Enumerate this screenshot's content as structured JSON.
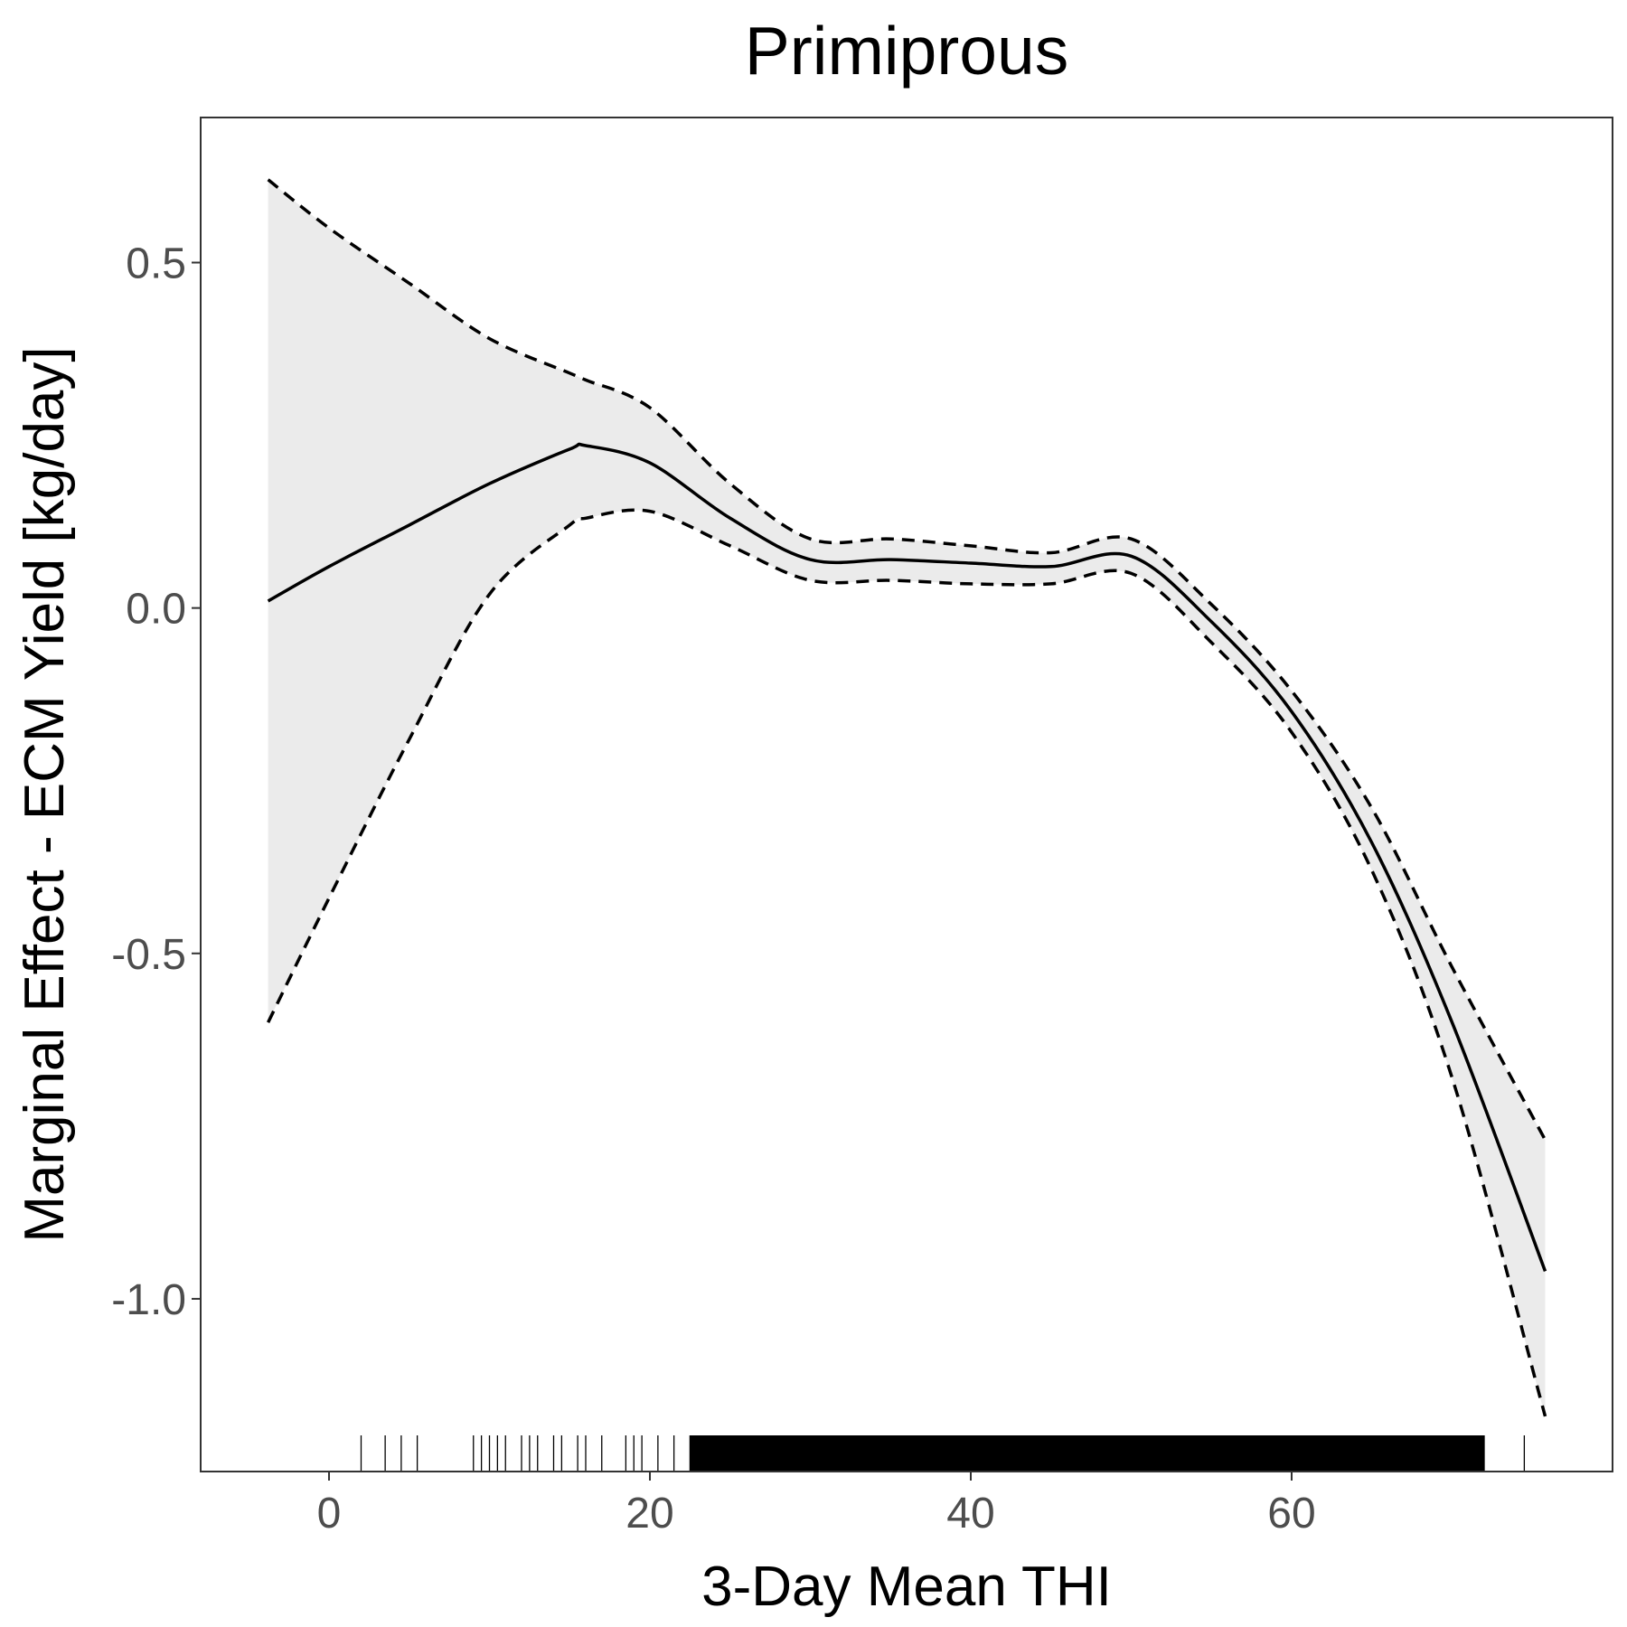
{
  "chart_data": {
    "type": "line",
    "title": "Primiprous",
    "xlabel": "3-Day Mean THI",
    "ylabel": "Marginal Effect - ECM Yield [kg/day]",
    "xlim": [
      -8,
      80
    ],
    "ylim": [
      -1.25,
      0.71
    ],
    "xticks": [
      0,
      20,
      40,
      60
    ],
    "xtick_labels": [
      "0",
      "20",
      "40",
      "60"
    ],
    "yticks": [
      0.5,
      0.0,
      -0.5,
      -1.0
    ],
    "ytick_labels": [
      "0.5",
      "0.0",
      "-0.5",
      "-1.0"
    ],
    "grid": false,
    "ribbon_color": "#ebebeb",
    "line_color": "#000000",
    "x": [
      -3.8,
      0,
      5,
      10,
      15,
      16,
      20,
      25,
      30,
      35,
      40,
      45,
      50,
      55,
      60,
      65,
      70,
      75.8
    ],
    "estimate": [
      0.01,
      0.06,
      0.12,
      0.18,
      0.23,
      0.235,
      0.21,
      0.13,
      0.07,
      0.07,
      0.065,
      0.06,
      0.075,
      -0.02,
      -0.15,
      -0.34,
      -0.6,
      -0.96
    ],
    "lower": [
      -0.6,
      -0.42,
      -0.19,
      0.02,
      0.12,
      0.13,
      0.14,
      0.09,
      0.04,
      0.04,
      0.035,
      0.035,
      0.05,
      -0.05,
      -0.18,
      -0.38,
      -0.68,
      -1.17
    ],
    "upper": [
      0.62,
      0.55,
      0.47,
      0.39,
      0.34,
      0.33,
      0.29,
      0.18,
      0.1,
      0.1,
      0.09,
      0.08,
      0.1,
      0.005,
      -0.12,
      -0.29,
      -0.52,
      -0.77
    ],
    "rug": [
      2,
      3.5,
      4.5,
      5.5,
      9,
      9.5,
      10,
      10.5,
      11,
      12,
      12.5,
      13,
      14,
      14.5,
      15.5,
      16,
      17,
      18.5,
      19,
      19.5,
      20.5,
      21.5,
      22.5,
      23,
      24,
      25,
      26,
      27,
      28,
      29,
      30,
      31,
      32,
      33,
      34,
      35,
      36,
      37,
      38,
      39,
      40,
      41,
      42,
      43,
      44,
      45,
      46,
      47,
      48,
      49,
      50,
      51,
      52,
      53,
      54,
      55,
      56,
      57,
      58,
      59,
      60,
      61,
      62,
      63,
      64,
      65,
      66,
      67,
      68,
      69,
      70,
      71,
      72,
      74.5
    ]
  }
}
